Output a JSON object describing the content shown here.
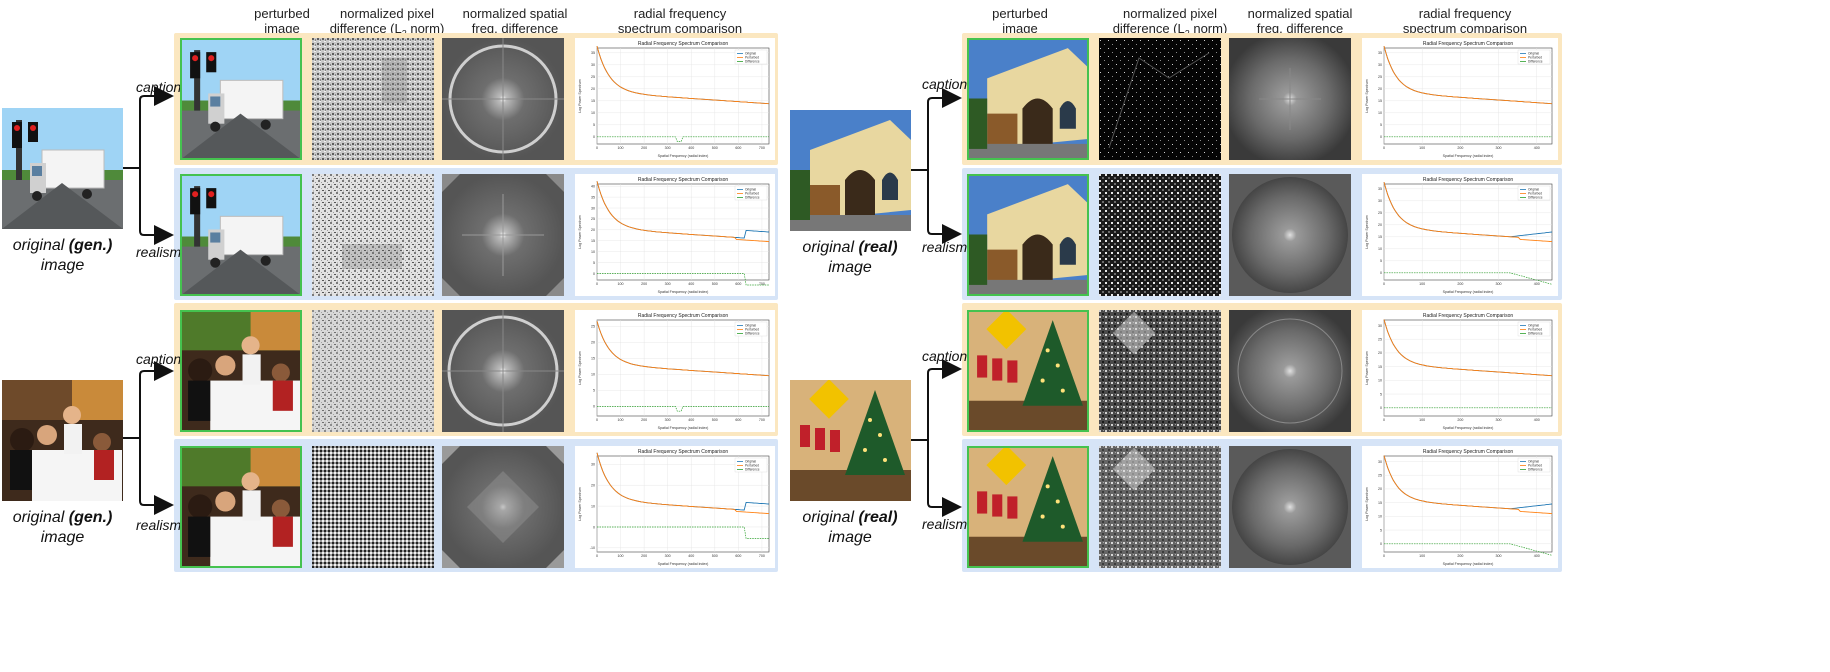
{
  "column_headers": {
    "perturbed": [
      "perturbed",
      "image"
    ],
    "pixel_diff_line1": "normalized pixel",
    "pixel_diff_line2a": "difference (L",
    "pixel_diff_sub": "2",
    "pixel_diff_line2b": " norm)",
    "spatial_freq": [
      "normalized spatial",
      "freq. difference"
    ],
    "radial": [
      "radial frequency",
      "spectrum comparison"
    ]
  },
  "labels": {
    "caption": "caption",
    "realism": "realism",
    "original_gen_pre": "original ",
    "original_gen_bold": "(gen.)",
    "original_real_bold": "(real)",
    "image": "image"
  },
  "legend": [
    "Original",
    "Perturbed",
    "Difference"
  ],
  "colors": {
    "original": "#1f77b4",
    "perturbed": "#ff7f0e",
    "difference": "#2ca02c",
    "yellow_panel": "#fbe7c0",
    "blue_panel": "#d6e4f7",
    "green_border": "#45c24f"
  },
  "chart_data": [
    {
      "type": "line",
      "title": "Radial Frequency Spectrum Comparison",
      "xlabel": "Spatial Frequency (radial index)",
      "ylabel": "Log Power Spectrum",
      "xticks": [
        "0",
        "100",
        "200",
        "300",
        "400",
        "500",
        "600",
        "700"
      ],
      "yticks": [
        "0",
        "5",
        "10",
        "15",
        "20",
        "25",
        "30",
        "35"
      ],
      "xlim": [
        0,
        730
      ],
      "ylim": [
        -3,
        37
      ],
      "series": [
        {
          "name": "Original"
        },
        {
          "name": "Perturbed"
        },
        {
          "name": "Difference"
        }
      ],
      "variant": "caption-gen"
    },
    {
      "type": "line",
      "title": "Radial Frequency Spectrum Comparison",
      "xlabel": "Spatial Frequency (radial index)",
      "ylabel": "Log Power Spectrum",
      "xticks": [
        "0",
        "100",
        "200",
        "300",
        "400",
        "500",
        "600",
        "700"
      ],
      "yticks": [
        "0",
        "5",
        "10",
        "15",
        "20",
        "25",
        "30",
        "35",
        "40"
      ],
      "xlim": [
        0,
        730
      ],
      "ylim": [
        -3,
        41
      ],
      "series": [
        {
          "name": "Original"
        },
        {
          "name": "Perturbed"
        },
        {
          "name": "Difference"
        }
      ],
      "variant": "realism-gen"
    },
    {
      "type": "line",
      "title": "Radial Frequency Spectrum Comparison",
      "xlabel": "Spatial Frequency (radial index)",
      "ylabel": "Log Power Spectrum",
      "xticks": [
        "0",
        "100",
        "200",
        "300",
        "400",
        "500",
        "600",
        "700"
      ],
      "yticks": [
        "0",
        "5",
        "10",
        "15",
        "20",
        "25"
      ],
      "xlim": [
        0,
        730
      ],
      "ylim": [
        -3,
        27
      ],
      "series": [
        {
          "name": "Original"
        },
        {
          "name": "Perturbed"
        },
        {
          "name": "Difference"
        }
      ],
      "variant": "caption-gen"
    },
    {
      "type": "line",
      "title": "Radial Frequency Spectrum Comparison",
      "xlabel": "Spatial Frequency (radial index)",
      "ylabel": "Log Power Spectrum",
      "xticks": [
        "0",
        "100",
        "200",
        "300",
        "400",
        "500",
        "600",
        "700"
      ],
      "yticks": [
        "-10",
        "0",
        "10",
        "20",
        "30"
      ],
      "xlim": [
        0,
        730
      ],
      "ylim": [
        -12,
        34
      ],
      "series": [
        {
          "name": "Original"
        },
        {
          "name": "Perturbed"
        },
        {
          "name": "Difference"
        }
      ],
      "variant": "realism-gen"
    },
    {
      "type": "line",
      "title": "Radial Frequency Spectrum Comparison",
      "xlabel": "Spatial Frequency (radial index)",
      "ylabel": "Log Power Spectrum",
      "xticks": [
        "0",
        "100",
        "200",
        "300",
        "400"
      ],
      "yticks": [
        "0",
        "5",
        "10",
        "15",
        "20",
        "25",
        "30",
        "35"
      ],
      "xlim": [
        0,
        440
      ],
      "ylim": [
        -3,
        37
      ],
      "series": [
        {
          "name": "Original"
        },
        {
          "name": "Perturbed"
        },
        {
          "name": "Difference"
        }
      ],
      "variant": "caption-real"
    },
    {
      "type": "line",
      "title": "Radial Frequency Spectrum Comparison",
      "xlabel": "Spatial Frequency (radial index)",
      "ylabel": "Log Power Spectrum",
      "xticks": [
        "0",
        "100",
        "200",
        "300",
        "400"
      ],
      "yticks": [
        "0",
        "5",
        "10",
        "15",
        "20",
        "25",
        "30",
        "35"
      ],
      "xlim": [
        0,
        440
      ],
      "ylim": [
        -3,
        37
      ],
      "series": [
        {
          "name": "Original"
        },
        {
          "name": "Perturbed"
        },
        {
          "name": "Difference"
        }
      ],
      "variant": "realism-real"
    },
    {
      "type": "line",
      "title": "Radial Frequency Spectrum Comparison",
      "xlabel": "Spatial Frequency (radial index)",
      "ylabel": "Log Power Spectrum",
      "xticks": [
        "0",
        "100",
        "200",
        "300",
        "400"
      ],
      "yticks": [
        "0",
        "5",
        "10",
        "15",
        "20",
        "25",
        "30"
      ],
      "xlim": [
        0,
        440
      ],
      "ylim": [
        -3,
        32
      ],
      "series": [
        {
          "name": "Original"
        },
        {
          "name": "Perturbed"
        },
        {
          "name": "Difference"
        }
      ],
      "variant": "caption-real"
    },
    {
      "type": "line",
      "title": "Radial Frequency Spectrum Comparison",
      "xlabel": "Spatial Frequency (radial index)",
      "ylabel": "Log Power Spectrum",
      "xticks": [
        "0",
        "100",
        "200",
        "300",
        "400"
      ],
      "yticks": [
        "0",
        "5",
        "10",
        "15",
        "20",
        "25",
        "30"
      ],
      "xlim": [
        0,
        440
      ],
      "ylim": [
        -3,
        32
      ],
      "series": [
        {
          "name": "Original"
        },
        {
          "name": "Perturbed"
        },
        {
          "name": "Difference"
        }
      ],
      "variant": "realism-real"
    }
  ]
}
